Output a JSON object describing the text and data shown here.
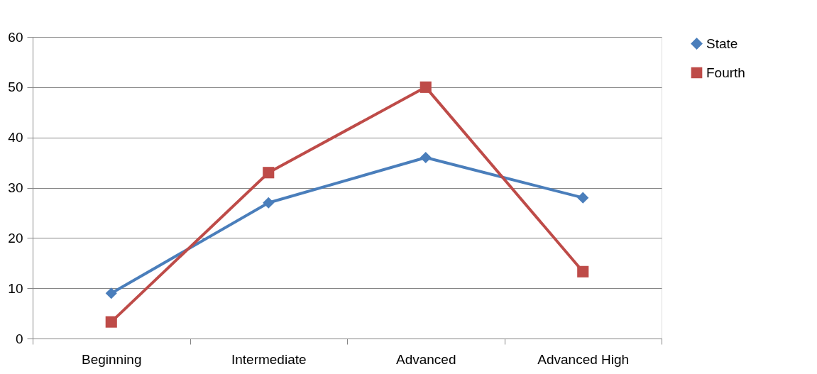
{
  "chart_data": {
    "type": "line",
    "categories": [
      "Beginning",
      "Intermediate",
      "Advanced",
      "Advanced High"
    ],
    "series": [
      {
        "name": "State",
        "color": "#4a7ebb",
        "marker": "diamond",
        "values": [
          9,
          27,
          36,
          28
        ]
      },
      {
        "name": "Fourth",
        "color": "#be4b48",
        "marker": "square",
        "values": [
          3.3,
          33,
          50,
          13.3
        ]
      }
    ],
    "ylim": [
      0,
      60
    ],
    "yticks": [
      0,
      10,
      20,
      30,
      40,
      50,
      60
    ],
    "grid": "y",
    "legend": "right",
    "line_style": "solid"
  }
}
